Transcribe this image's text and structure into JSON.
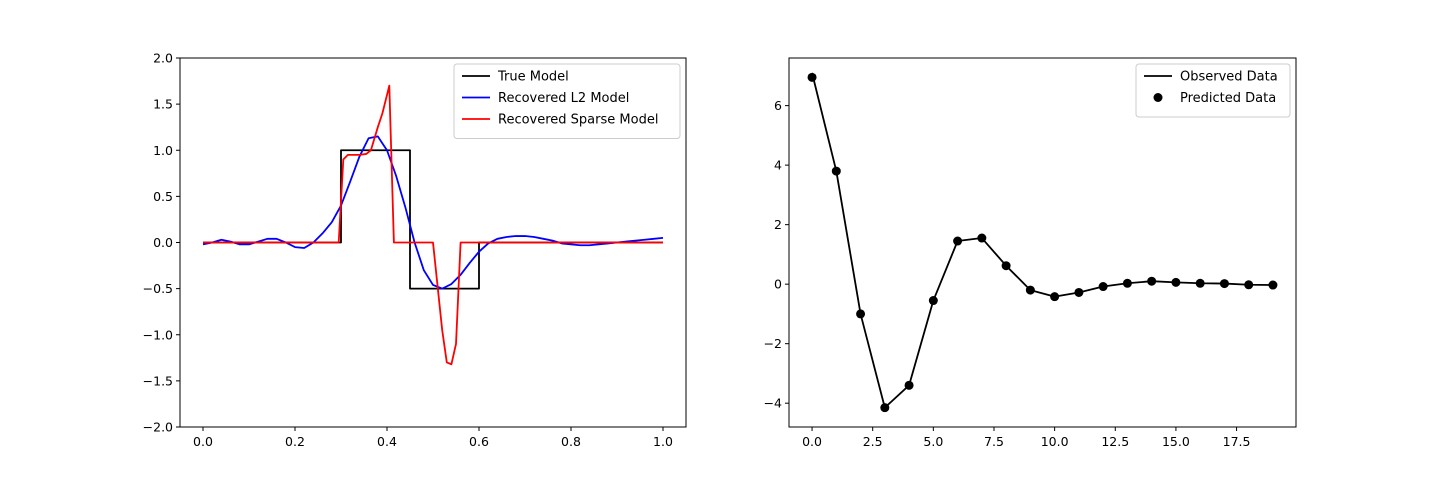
{
  "chart_data": [
    {
      "type": "line",
      "title": "",
      "xlabel": "",
      "ylabel": "",
      "xlim": [
        -0.05,
        1.05
      ],
      "ylim": [
        -2.0,
        2.0
      ],
      "xticks": [
        0.0,
        0.2,
        0.4,
        0.6,
        0.8,
        1.0
      ],
      "xtick_labels": [
        "0.0",
        "0.2",
        "0.4",
        "0.6",
        "0.8",
        "1.0"
      ],
      "yticks": [
        -2.0,
        -1.5,
        -1.0,
        -0.5,
        0.0,
        0.5,
        1.0,
        1.5,
        2.0
      ],
      "ytick_labels": [
        "−2.0",
        "−1.5",
        "−1.0",
        "−0.5",
        "0.0",
        "0.5",
        "1.0",
        "1.5",
        "2.0"
      ],
      "legend_position": "top-right",
      "series": [
        {
          "name": "True Model",
          "color": "#000000",
          "x": [
            0.0,
            0.3,
            0.3,
            0.45,
            0.45,
            0.6,
            0.6,
            1.0
          ],
          "y": [
            0.0,
            0.0,
            1.0,
            1.0,
            -0.5,
            -0.5,
            0.0,
            0.0
          ]
        },
        {
          "name": "Recovered L2 Model",
          "color": "#0000ff",
          "x": [
            0.0,
            0.02,
            0.04,
            0.06,
            0.08,
            0.1,
            0.12,
            0.14,
            0.16,
            0.18,
            0.2,
            0.22,
            0.24,
            0.26,
            0.28,
            0.3,
            0.32,
            0.34,
            0.36,
            0.38,
            0.4,
            0.42,
            0.44,
            0.46,
            0.48,
            0.5,
            0.52,
            0.54,
            0.56,
            0.58,
            0.6,
            0.62,
            0.64,
            0.66,
            0.68,
            0.7,
            0.72,
            0.74,
            0.76,
            0.78,
            0.8,
            0.82,
            0.84,
            0.86,
            0.88,
            0.9,
            0.92,
            0.94,
            0.96,
            0.98,
            1.0
          ],
          "y": [
            -0.02,
            0.0,
            0.03,
            0.01,
            -0.02,
            -0.02,
            0.01,
            0.04,
            0.04,
            0.0,
            -0.05,
            -0.06,
            0.0,
            0.1,
            0.22,
            0.4,
            0.66,
            0.93,
            1.13,
            1.15,
            1.0,
            0.72,
            0.38,
            0.0,
            -0.3,
            -0.46,
            -0.5,
            -0.45,
            -0.35,
            -0.22,
            -0.1,
            -0.01,
            0.04,
            0.06,
            0.07,
            0.07,
            0.06,
            0.04,
            0.02,
            -0.01,
            -0.02,
            -0.03,
            -0.03,
            -0.02,
            -0.01,
            0.0,
            0.01,
            0.02,
            0.03,
            0.04,
            0.05
          ]
        },
        {
          "name": "Recovered Sparse Model",
          "color": "#ff0000",
          "x": [
            0.0,
            0.295,
            0.305,
            0.315,
            0.34,
            0.355,
            0.365,
            0.38,
            0.39,
            0.405,
            0.415,
            0.5,
            0.52,
            0.53,
            0.54,
            0.55,
            0.56,
            0.57,
            1.0
          ],
          "y": [
            0.0,
            0.0,
            0.9,
            0.95,
            0.95,
            0.96,
            1.0,
            1.25,
            1.4,
            1.7,
            0.0,
            0.0,
            -0.95,
            -1.3,
            -1.32,
            -1.1,
            0.0,
            0.0,
            0.0
          ]
        }
      ]
    },
    {
      "type": "line",
      "title": "",
      "xlabel": "",
      "ylabel": "",
      "xlim": [
        -0.95,
        19.95
      ],
      "ylim": [
        -4.8,
        7.6
      ],
      "xticks": [
        0.0,
        2.5,
        5.0,
        7.5,
        10.0,
        12.5,
        15.0,
        17.5
      ],
      "xtick_labels": [
        "0.0",
        "2.5",
        "5.0",
        "7.5",
        "10.0",
        "12.5",
        "15.0",
        "17.5"
      ],
      "yticks": [
        -4,
        -2,
        0,
        2,
        4,
        6
      ],
      "ytick_labels": [
        "−4",
        "−2",
        "0",
        "2",
        "4",
        "6"
      ],
      "legend_position": "top-right",
      "series": [
        {
          "name": "Observed Data",
          "color": "#000000",
          "style": "line",
          "x": [
            0,
            1,
            2,
            3,
            4,
            5,
            6,
            7,
            8,
            9,
            10,
            11,
            12,
            13,
            14,
            15,
            16,
            17,
            18,
            19
          ],
          "y": [
            7.1,
            3.8,
            -1.0,
            -4.15,
            -3.4,
            -0.55,
            1.45,
            1.55,
            0.62,
            -0.2,
            -0.42,
            -0.28,
            -0.08,
            0.03,
            0.1,
            0.06,
            0.03,
            0.02,
            -0.02,
            -0.03
          ]
        },
        {
          "name": "Predicted Data",
          "color": "#000000",
          "style": "markers",
          "x": [
            0,
            1,
            2,
            3,
            4,
            5,
            6,
            7,
            8,
            9,
            10,
            11,
            12,
            13,
            14,
            15,
            16,
            17,
            18,
            19
          ],
          "y": [
            6.95,
            3.8,
            -1.0,
            -4.15,
            -3.4,
            -0.55,
            1.45,
            1.55,
            0.62,
            -0.2,
            -0.42,
            -0.28,
            -0.08,
            0.03,
            0.1,
            0.06,
            0.03,
            0.02,
            -0.02,
            -0.03
          ]
        }
      ]
    }
  ]
}
